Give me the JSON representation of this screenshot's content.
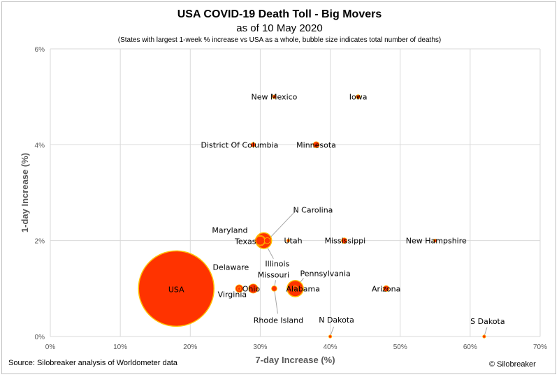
{
  "title": "USA COVID-19 Death Toll - Big Movers",
  "subtitle": "as of 10 May 2020",
  "note": "(States with largest 1-week % increase vs USA as a whole, bubble size indicates total number of deaths)",
  "source": "Source: Silobreaker analysis of Worldometer data",
  "copyright": "© Silobreaker",
  "colors": {
    "bubble_fill": "#ff3300",
    "bubble_edge": "#ffc000",
    "grid": "#d9d9d9",
    "leader": "#a6a6a6"
  },
  "chart_data": {
    "type": "scatter",
    "subtype": "bubble",
    "xlabel": "7-day Increase (%)",
    "ylabel": "1-day Increase (%)",
    "xlim": [
      0,
      70
    ],
    "ylim": [
      0,
      6
    ],
    "xticks": [
      "0%",
      "10%",
      "20%",
      "30%",
      "40%",
      "50%",
      "60%",
      "70%"
    ],
    "yticks": [
      "0%",
      "2%",
      "4%",
      "6%"
    ],
    "grid": true,
    "points": [
      {
        "name": "USA",
        "x": 18,
        "y": 1,
        "size": 80000
      },
      {
        "name": "Texas",
        "x": 30,
        "y": 2,
        "size": 1100
      },
      {
        "name": "Maryland",
        "x": 30,
        "y": 2,
        "size": 1500
      },
      {
        "name": "N Carolina",
        "x": 31,
        "y": 2,
        "size": 500
      },
      {
        "name": "Illinois",
        "x": 30.5,
        "y": 2,
        "size": 3500
      },
      {
        "name": "Alabama",
        "x": 35,
        "y": 1,
        "size": 400
      },
      {
        "name": "Pennsylvania",
        "x": 35,
        "y": 1,
        "size": 3700
      },
      {
        "name": "Utah",
        "x": 34,
        "y": 2,
        "size": 60
      },
      {
        "name": "Mississippi",
        "x": 42,
        "y": 2,
        "size": 450
      },
      {
        "name": "New Hampshire",
        "x": 55,
        "y": 2,
        "size": 150
      },
      {
        "name": "New Mexico",
        "x": 32,
        "y": 5,
        "size": 200
      },
      {
        "name": "Iowa",
        "x": 44,
        "y": 5,
        "size": 250
      },
      {
        "name": "District Of Columbia",
        "x": 29,
        "y": 4,
        "size": 300
      },
      {
        "name": "Minnesota",
        "x": 38,
        "y": 4,
        "size": 550
      },
      {
        "name": "Delaware",
        "x": 27,
        "y": 1,
        "size": 170
      },
      {
        "name": "Virginia",
        "x": 27,
        "y": 1,
        "size": 800
      },
      {
        "name": "Ohio",
        "x": 29,
        "y": 1,
        "size": 1200
      },
      {
        "name": "Missouri",
        "x": 32,
        "y": 1,
        "size": 400
      },
      {
        "name": "Rhode Island",
        "x": 32,
        "y": 1,
        "size": 400
      },
      {
        "name": "Arizona",
        "x": 48,
        "y": 1,
        "size": 500
      },
      {
        "name": "N Dakota",
        "x": 40,
        "y": 0,
        "size": 30
      },
      {
        "name": "S Dakota",
        "x": 62,
        "y": 0,
        "size": 30
      }
    ]
  }
}
